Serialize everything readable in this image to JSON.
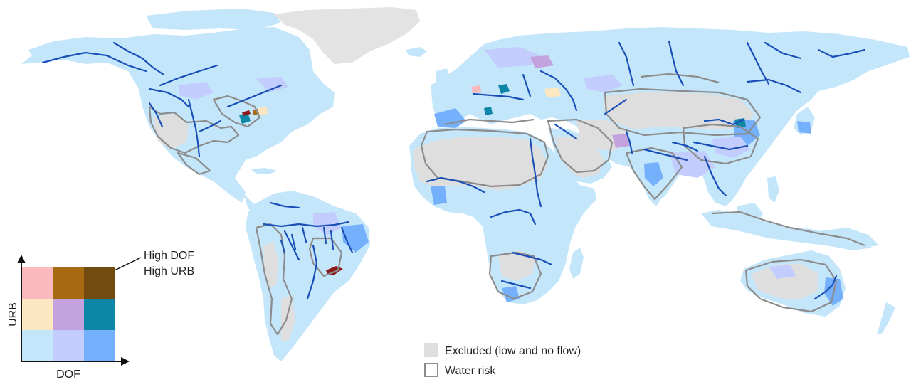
{
  "legend": {
    "y_axis_label": "URB",
    "x_axis_label": "DOF",
    "callout_line1": "High DOF",
    "callout_line2": "High URB",
    "grid_colors": [
      [
        "#f9b9bd",
        "#a86a10",
        "#714b10"
      ],
      [
        "#fde6c2",
        "#c3a2dd",
        "#0e86a6"
      ],
      [
        "#c4e6fb",
        "#c3cdfd",
        "#74b0fb"
      ]
    ],
    "excluded_label": "Excluded (low and no flow)",
    "excluded_color": "#dedede",
    "water_risk_label": "Water risk",
    "water_risk_color": "#8c8c8c"
  },
  "map": {
    "base_land_color": "#c4e6fb",
    "excluded_color": "#dedede",
    "greenland_color": "#e3e3e3",
    "river_color": "#1a4fb8",
    "water_risk_outline_color": "#8c8c8c",
    "high_dof_high_urb_color": "#714b10",
    "high_urb_color": "#a86a10",
    "mid_color_teal": "#0e86a6",
    "high_dof_color": "#74b0fb",
    "mid_dof_color": "#c3cdfd",
    "low_risk_pink": "#f9b9bd",
    "low_urb_cream": "#fde6c2",
    "hotspot_red": "#8b1a1a"
  }
}
